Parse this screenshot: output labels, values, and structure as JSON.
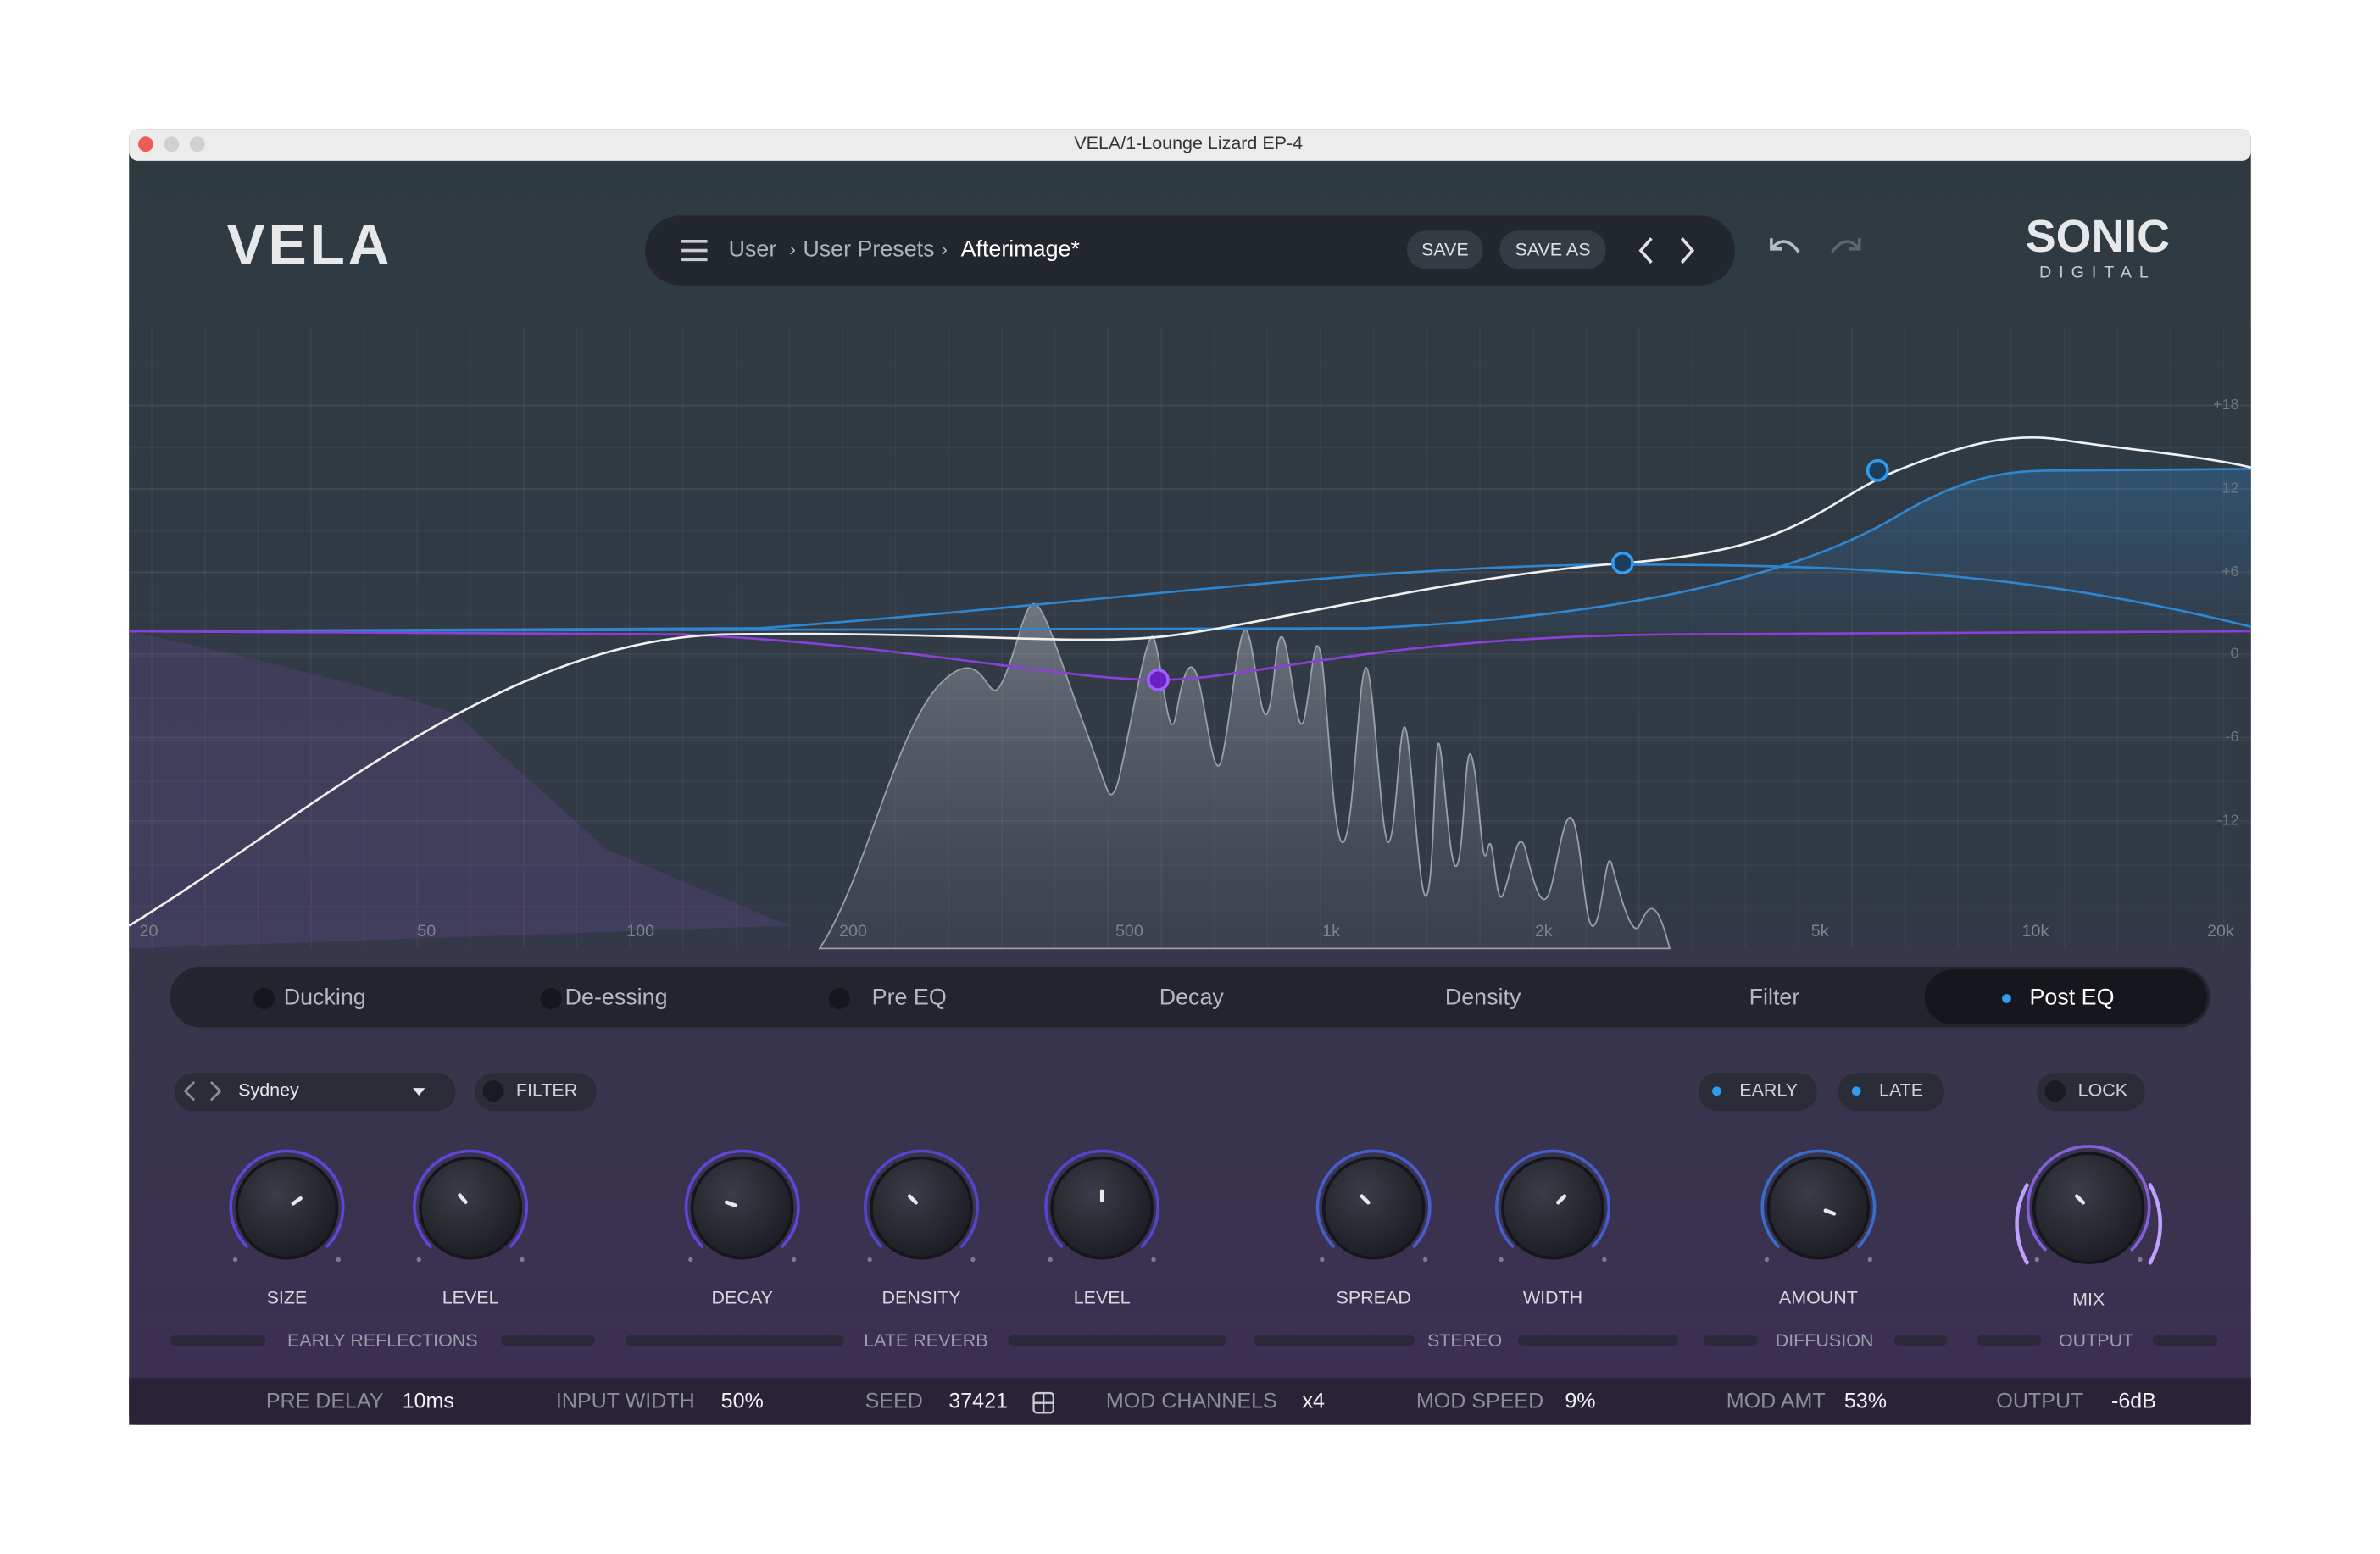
{
  "window": {
    "title": "VELA/1-Lounge Lizard EP-4"
  },
  "header": {
    "logo": "VELA",
    "breadcrumb": [
      "User",
      "User Presets",
      "Afterimage*"
    ],
    "buttons": [
      "SAVE",
      "SAVE AS"
    ],
    "brand": "SONIC",
    "brand_sub": "DIGITAL"
  },
  "eq": {
    "x_labels": [
      "20",
      "50",
      "100",
      "200",
      "500",
      "1k",
      "2k",
      "5k",
      "10k",
      "20k"
    ],
    "y_labels": [
      "+18",
      "12",
      "+6",
      "0",
      "-6",
      "-12"
    ]
  },
  "tabs": [
    "Ducking",
    "De-essing",
    "Pre EQ",
    "Decay",
    "Density",
    "Filter",
    "Post EQ"
  ],
  "controls": {
    "preset": "Sydney",
    "filter": "FILTER",
    "early": "EARLY",
    "late": "LATE",
    "lock": "LOCK"
  },
  "knobs": [
    "SIZE",
    "LEVEL",
    "DECAY",
    "DENSITY",
    "LEVEL",
    "SPREAD",
    "WIDTH",
    "AMOUNT",
    "MIX"
  ],
  "sections": [
    "EARLY REFLECTIONS",
    "LATE REVERB",
    "STEREO",
    "DIFFUSION",
    "OUTPUT"
  ],
  "params": [
    {
      "label": "PRE DELAY",
      "value": "10ms"
    },
    {
      "label": "INPUT WIDTH",
      "value": "50%"
    },
    {
      "label": "SEED",
      "value": "37421"
    },
    {
      "label": "MOD CHANNELS",
      "value": "x4"
    },
    {
      "label": "MOD SPEED",
      "value": "9%"
    },
    {
      "label": "MOD AMT",
      "value": "53%"
    },
    {
      "label": "OUTPUT",
      "value": "-6dB"
    }
  ]
}
